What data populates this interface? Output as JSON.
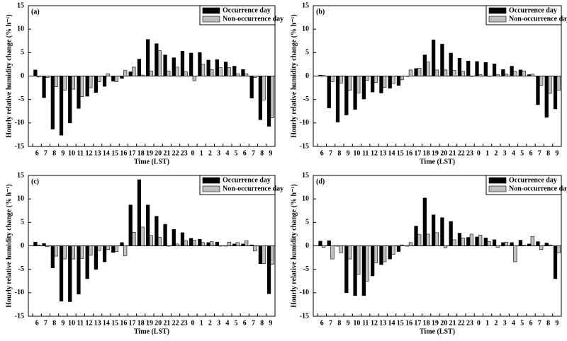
{
  "chart_data": [
    {
      "type": "bar",
      "panel_label": "(a)",
      "ylabel": "Hourly relative humidity change (% h⁻¹)",
      "xlabel": "Time (LST)",
      "categories": [
        "6",
        "7",
        "8",
        "9",
        "10",
        "11",
        "12",
        "13",
        "14",
        "15",
        "16",
        "17",
        "18",
        "19",
        "20",
        "21",
        "22",
        "23",
        "0",
        "1",
        "2",
        "3",
        "4",
        "5",
        "6",
        "7",
        "8",
        "9"
      ],
      "series": [
        {
          "name": "Occurrence day",
          "color": "#000000",
          "values": [
            1.3,
            -4.6,
            -11.3,
            -12.6,
            -10,
            -6.9,
            -4.3,
            -3.5,
            -2.2,
            -1.1,
            -0.5,
            0.9,
            3.6,
            7.8,
            6.9,
            4.5,
            3.9,
            5.3,
            4.9,
            5,
            3.4,
            3.5,
            3,
            2.1,
            1.4,
            -4.7,
            -9.3,
            -10.7
          ]
        },
        {
          "name": "Non-occurrence day",
          "color": "#c0c0c0",
          "values": [
            -0.2,
            -0.3,
            -2.3,
            -3,
            -2.8,
            -4.4,
            -2.5,
            -1.2,
            0.5,
            -1.2,
            1.2,
            1.9,
            0.2,
            1.1,
            5.4,
            1.1,
            1.9,
            0.9,
            -1,
            2.5,
            1.4,
            1.8,
            1.8,
            0.5,
            0.5,
            -0.3,
            -5.1,
            -8.9
          ]
        }
      ],
      "ylim": [
        -15,
        15
      ],
      "yticks": [
        -15,
        -10,
        -5,
        0,
        5,
        10,
        15
      ]
    },
    {
      "type": "bar",
      "panel_label": "(b)",
      "ylabel": "Hourly relative humidity change (% h⁻¹)",
      "xlabel": "Time (LST)",
      "categories": [
        "6",
        "7",
        "8",
        "9",
        "10",
        "11",
        "12",
        "13",
        "14",
        "15",
        "16",
        "17",
        "18",
        "19",
        "20",
        "21",
        "22",
        "23",
        "0",
        "1",
        "2",
        "3",
        "4",
        "5",
        "6",
        "7",
        "8",
        "9"
      ],
      "series": [
        {
          "name": "Occurrence day",
          "color": "#000000",
          "values": [
            0.2,
            -6.8,
            -9.8,
            -8.3,
            -7.1,
            -4.9,
            -3.4,
            -3.6,
            -2.6,
            -2,
            0,
            1.6,
            4.5,
            7.7,
            6.8,
            4.9,
            3.8,
            3.2,
            3.1,
            2.9,
            2.6,
            1.4,
            2.1,
            1.3,
            0.3,
            -6.1,
            -8.8,
            -7
          ]
        },
        {
          "name": "Non-occurrence day",
          "color": "#c0c0c0",
          "values": [
            0.1,
            -1.2,
            -1.5,
            -3,
            -3.6,
            -0.9,
            -1.4,
            -2.4,
            -1.6,
            -0.8,
            1.3,
            1.7,
            3,
            1.3,
            1.3,
            1.2,
            1,
            0,
            0.3,
            0,
            0.3,
            0.4,
            1,
            1.1,
            0.4,
            -2,
            -3.7,
            -3
          ]
        }
      ],
      "ylim": [
        -15,
        15
      ],
      "yticks": [
        -15,
        -10,
        -5,
        0,
        5,
        10,
        15
      ]
    },
    {
      "type": "bar",
      "panel_label": "(c)",
      "ylabel": "Hourly relative humidity change (% h⁻¹)",
      "xlabel": "Time (LST)",
      "categories": [
        "6",
        "7",
        "8",
        "9",
        "10",
        "11",
        "12",
        "13",
        "14",
        "15",
        "16",
        "17",
        "18",
        "19",
        "20",
        "21",
        "22",
        "23",
        "0",
        "1",
        "2",
        "3",
        "4",
        "5",
        "6",
        "7",
        "8",
        "9"
      ],
      "series": [
        {
          "name": "Occurrence day",
          "color": "#000000",
          "values": [
            0.8,
            0.5,
            -4.7,
            -11.8,
            -11.9,
            -10.3,
            -7,
            -5,
            -3.4,
            -1.4,
            0.7,
            8.7,
            14.1,
            8.7,
            6.3,
            4.6,
            3.5,
            2.8,
            1.6,
            1.4,
            0.7,
            0.8,
            0,
            0.4,
            0.4,
            0.2,
            -3.8,
            -10.2
          ]
        },
        {
          "name": "Non-occurrence day",
          "color": "#c0c0c0",
          "values": [
            0.2,
            -0.2,
            -2.2,
            -2.8,
            -2.8,
            -2.7,
            -2,
            -1,
            -0.8,
            -1.2,
            -2.1,
            2.9,
            4,
            2.2,
            1.8,
            0,
            0.4,
            1.1,
            1.2,
            0.7,
            0.9,
            0,
            0.8,
            0.7,
            1.1,
            -1.1,
            -3.8,
            -3.9
          ]
        }
      ],
      "ylim": [
        -15,
        15
      ],
      "yticks": [
        -15,
        -10,
        -5,
        0,
        5,
        10,
        15
      ]
    },
    {
      "type": "bar",
      "panel_label": "(d)",
      "ylabel": "Hourly relative humidity change (% h⁻¹)",
      "xlabel": "Time (LST)",
      "categories": [
        "6",
        "7",
        "8",
        "9",
        "10",
        "11",
        "12",
        "13",
        "14",
        "15",
        "16",
        "17",
        "18",
        "19",
        "20",
        "21",
        "22",
        "23",
        "0",
        "1",
        "2",
        "3",
        "4",
        "5",
        "6",
        "7",
        "8",
        "9"
      ],
      "series": [
        {
          "name": "Occurrence day",
          "color": "#000000",
          "values": [
            1,
            1.1,
            0,
            -10,
            -10.6,
            -10.6,
            -6.4,
            -4,
            -2.8,
            -1.2,
            0,
            4.2,
            10.2,
            6.6,
            6,
            5.2,
            2.7,
            1.8,
            1.9,
            1.7,
            1.3,
            0.7,
            0.7,
            1.2,
            0.4,
            0.9,
            0.6,
            -7
          ]
        },
        {
          "name": "Non-occurrence day",
          "color": "#c0c0c0",
          "values": [
            -0.3,
            -2.8,
            -1.5,
            -2.8,
            -6.1,
            -7.5,
            -3.6,
            -3.4,
            -1.8,
            0.2,
            0.7,
            2.4,
            2.5,
            2.8,
            -0.4,
            1.3,
            1.7,
            2.5,
            2.3,
            0.9,
            -0.3,
            0.8,
            -3.4,
            0.1,
            2,
            -0.8,
            0.2,
            -1.5
          ]
        }
      ],
      "ylim": [
        -15,
        15
      ],
      "yticks": [
        -15,
        -10,
        -5,
        0,
        5,
        10,
        15
      ]
    }
  ]
}
